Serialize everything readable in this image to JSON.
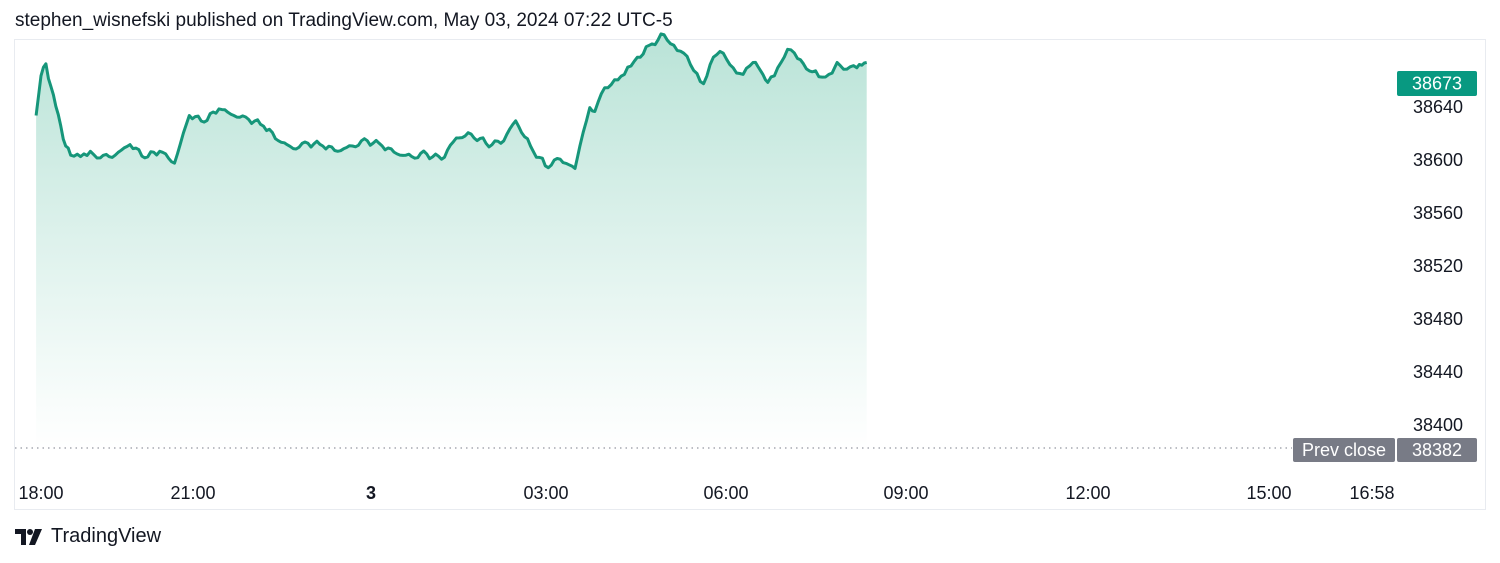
{
  "header": {
    "published_text": "stephen_wisnefski published on TradingView.com, May 03, 2024 07:22 UTC-5"
  },
  "footer": {
    "brand": "TradingView",
    "logo_icon": "tradingview-logo-icon"
  },
  "colors": {
    "line": "#16967a",
    "area_top": "#b9e3d7",
    "last_price_bg": "#089981",
    "prev_close_bg": "#787b86",
    "text": "#131722"
  },
  "chart_data": {
    "type": "area",
    "title": "",
    "xlabel": "",
    "ylabel": "",
    "ylim": [
      38382,
      38690
    ],
    "yticks": [
      38640,
      38600,
      38560,
      38520,
      38480,
      38440,
      38400
    ],
    "xticks": [
      {
        "label": "18:00",
        "bold": false
      },
      {
        "label": "21:00",
        "bold": false
      },
      {
        "label": "3",
        "bold": true
      },
      {
        "label": "03:00",
        "bold": false
      },
      {
        "label": "06:00",
        "bold": false
      },
      {
        "label": "09:00",
        "bold": false
      },
      {
        "label": "12:00",
        "bold": false
      },
      {
        "label": "15:00",
        "bold": false
      },
      {
        "label": "16:58",
        "bold": false
      }
    ],
    "series": [
      {
        "x": [
          "17:55",
          "18:00",
          "18:05",
          "18:10",
          "18:15",
          "18:20",
          "18:25",
          "18:30",
          "18:40",
          "18:50",
          "19:00",
          "19:15",
          "19:30",
          "19:45",
          "20:00",
          "20:15",
          "20:30",
          "20:45",
          "21:00",
          "21:15",
          "21:30",
          "21:45",
          "22:00",
          "22:15",
          "22:30",
          "22:45",
          "23:00",
          "23:15",
          "23:30",
          "23:45",
          "0:00",
          "0:15",
          "0:30",
          "0:45",
          "1:00",
          "1:15",
          "1:30",
          "1:45",
          "2:00",
          "2:15",
          "2:30",
          "2:45",
          "3:00",
          "3:05",
          "3:15",
          "3:20",
          "3:30",
          "3:40",
          "3:50",
          "4:00",
          "4:15",
          "4:30",
          "4:40",
          "4:50",
          "5:00",
          "5:10",
          "5:20",
          "5:30",
          "5:40",
          "5:50",
          "6:00",
          "6:05",
          "6:10",
          "6:15",
          "6:25",
          "6:35",
          "6:45",
          "7:00",
          "7:10",
          "7:20",
          "7:25",
          "7:35",
          "7:45",
          "7:50",
          "7:55"
        ],
        "values": [
          38633,
          38663,
          38672,
          38655,
          38640,
          38625,
          38610,
          38603,
          38602,
          38606,
          38601,
          38603,
          38611,
          38601,
          38606,
          38597,
          38633,
          38628,
          38638,
          38633,
          38630,
          38625,
          38614,
          38608,
          38612,
          38610,
          38606,
          38610,
          38614,
          38610,
          38604,
          38602,
          38604,
          38600,
          38616,
          38619,
          38612,
          38612,
          38629,
          38610,
          38595,
          38600,
          38593,
          38610,
          38639,
          38636,
          38654,
          38660,
          38664,
          38674,
          38686,
          38694,
          38686,
          38680,
          38667,
          38657,
          38677,
          38680,
          38669,
          38664,
          38673,
          38670,
          38664,
          38658,
          38669,
          38683,
          38676,
          38666,
          38662,
          38665,
          38673,
          38668,
          38669,
          38671,
          38673
        ]
      }
    ],
    "last_price": "38673",
    "prev_close_label": "Prev close",
    "prev_close": "38382"
  }
}
